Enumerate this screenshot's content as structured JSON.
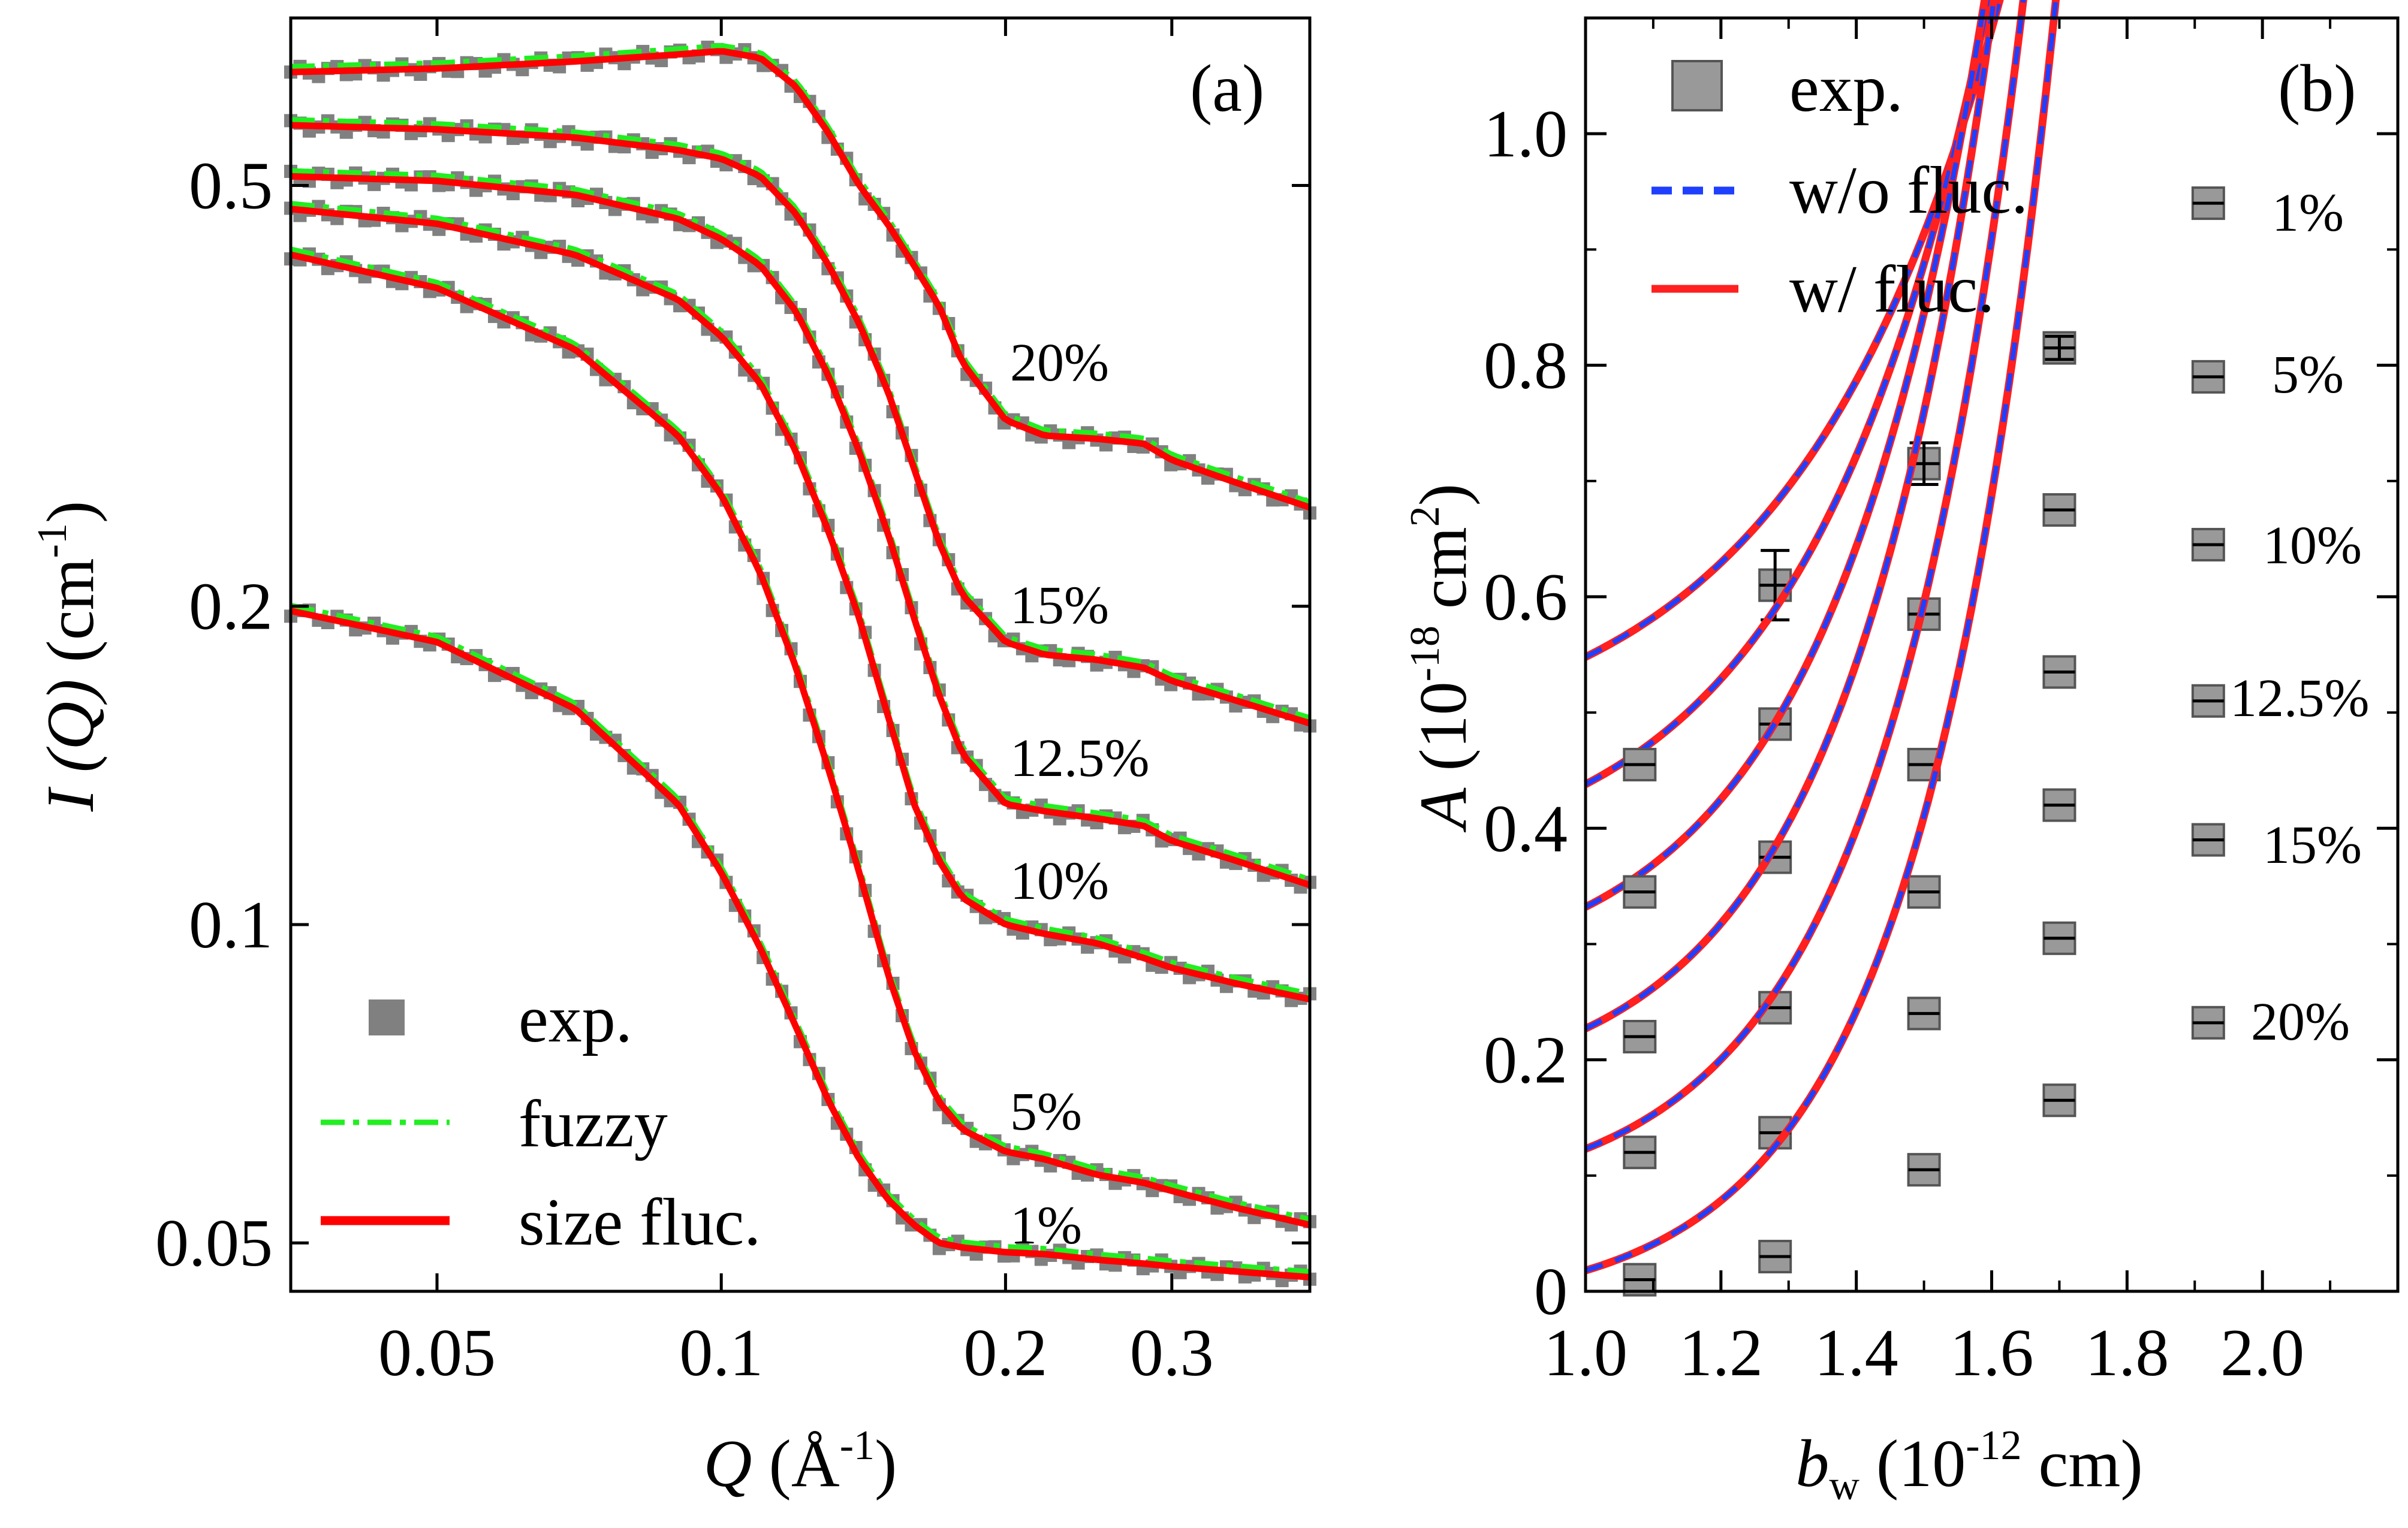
{
  "chart_data": [
    {
      "panel": "(a)",
      "type": "line",
      "scale": {
        "x": "log",
        "y": "log"
      },
      "xlim": [
        0.035,
        0.42
      ],
      "ylim": [
        0.045,
        0.72
      ],
      "xlabel": {
        "symbol": "Q",
        "unit": "(Å",
        "exp": "-1",
        "close": ")"
      },
      "ylabel": {
        "symbol": "I",
        "paren": "(Q)",
        "unit": "(cm",
        "exp": "-1",
        "close": ")"
      },
      "xticks": [
        0.05,
        0.1,
        0.2,
        0.3
      ],
      "xtick_labels": [
        "0.05",
        "0.1",
        "0.2",
        "0.3"
      ],
      "yticks": [
        0.05,
        0.1,
        0.2,
        0.5
      ],
      "ytick_labels": [
        "0.05",
        "0.1",
        "0.2",
        "0.5"
      ],
      "legend": {
        "position": "bottom-left",
        "entries": [
          {
            "label": "exp.",
            "style": "gray squares"
          },
          {
            "label": "fuzzy",
            "style": "green dash-dot"
          },
          {
            "label": "size fluc.",
            "style": "red solid"
          }
        ]
      },
      "series": [
        {
          "name": "20%",
          "x": [
            0.035,
            0.05,
            0.07,
            0.09,
            0.1,
            0.11,
            0.12,
            0.13,
            0.14,
            0.15,
            0.16,
            0.17,
            0.18,
            0.2,
            0.22,
            0.25,
            0.28,
            0.3,
            0.35,
            0.42
          ],
          "y": [
            0.64,
            0.645,
            0.655,
            0.665,
            0.67,
            0.66,
            0.62,
            0.56,
            0.5,
            0.46,
            0.42,
            0.385,
            0.34,
            0.3,
            0.29,
            0.288,
            0.285,
            0.275,
            0.262,
            0.248
          ]
        },
        {
          "name": "15%",
          "x": [
            0.035,
            0.05,
            0.07,
            0.09,
            0.1,
            0.11,
            0.12,
            0.13,
            0.14,
            0.15,
            0.16,
            0.17,
            0.18,
            0.2,
            0.22,
            0.25,
            0.28,
            0.3,
            0.35,
            0.42
          ],
          "y": [
            0.57,
            0.565,
            0.555,
            0.54,
            0.53,
            0.51,
            0.47,
            0.42,
            0.37,
            0.32,
            0.27,
            0.23,
            0.205,
            0.185,
            0.18,
            0.178,
            0.175,
            0.17,
            0.163,
            0.155
          ]
        },
        {
          "name": "12.5%",
          "x": [
            0.035,
            0.05,
            0.07,
            0.09,
            0.1,
            0.11,
            0.12,
            0.13,
            0.14,
            0.15,
            0.16,
            0.17,
            0.18,
            0.2,
            0.22,
            0.25,
            0.28,
            0.3,
            0.35,
            0.42
          ],
          "y": [
            0.51,
            0.505,
            0.49,
            0.465,
            0.445,
            0.42,
            0.38,
            0.33,
            0.28,
            0.235,
            0.195,
            0.165,
            0.145,
            0.13,
            0.128,
            0.126,
            0.124,
            0.12,
            0.115,
            0.109
          ]
        },
        {
          "name": "10%",
          "x": [
            0.035,
            0.05,
            0.07,
            0.09,
            0.1,
            0.11,
            0.12,
            0.13,
            0.14,
            0.15,
            0.16,
            0.17,
            0.18,
            0.2,
            0.22,
            0.25,
            0.28,
            0.3,
            0.35,
            0.42
          ],
          "y": [
            0.475,
            0.46,
            0.43,
            0.39,
            0.36,
            0.325,
            0.28,
            0.235,
            0.195,
            0.158,
            0.13,
            0.115,
            0.106,
            0.1,
            0.098,
            0.096,
            0.093,
            0.091,
            0.088,
            0.085
          ]
        },
        {
          "name": "5%",
          "x": [
            0.035,
            0.05,
            0.07,
            0.09,
            0.1,
            0.11,
            0.12,
            0.13,
            0.14,
            0.15,
            0.16,
            0.17,
            0.18,
            0.2,
            0.22,
            0.25,
            0.28,
            0.3,
            0.35,
            0.42
          ],
          "y": [
            0.43,
            0.4,
            0.35,
            0.29,
            0.255,
            0.215,
            0.175,
            0.14,
            0.112,
            0.09,
            0.076,
            0.068,
            0.064,
            0.061,
            0.06,
            0.058,
            0.057,
            0.056,
            0.054,
            0.052
          ]
        },
        {
          "name": "1%",
          "x": [
            0.035,
            0.05,
            0.07,
            0.09,
            0.1,
            0.11,
            0.12,
            0.13,
            0.14,
            0.15,
            0.16,
            0.17,
            0.18,
            0.2,
            0.22,
            0.25,
            0.28,
            0.3,
            0.35,
            0.42
          ],
          "y": [
            0.198,
            0.185,
            0.16,
            0.13,
            0.112,
            0.095,
            0.08,
            0.068,
            0.06,
            0.055,
            0.052,
            0.05,
            0.0495,
            0.049,
            0.0488,
            0.0482,
            0.0478,
            0.0475,
            0.047,
            0.0464
          ]
        }
      ],
      "curve_labels": [
        "20%",
        "15%",
        "12.5%",
        "10%",
        "5%",
        "1%"
      ]
    },
    {
      "panel": "(b)",
      "type": "line",
      "xlim": [
        1.0,
        2.2
      ],
      "ylim": [
        0,
        1.1
      ],
      "xlabel": {
        "symbol": "b",
        "sub": "w",
        "unit": "(10",
        "exp": "-12",
        "close": " cm)"
      },
      "ylabel": {
        "symbol": "A",
        "unit": "(10",
        "exp": "-18",
        "mid": " cm",
        "exp2": "2",
        "close": ")"
      },
      "xticks": [
        1.0,
        1.2,
        1.4,
        1.6,
        1.8,
        2.0
      ],
      "xtick_labels": [
        "1.0",
        "1.2",
        "1.4",
        "1.6",
        "1.8",
        "2.0"
      ],
      "yticks": [
        0,
        0.2,
        0.4,
        0.6,
        0.8,
        1.0
      ],
      "ytick_labels": [
        "0",
        "0.2",
        "0.4",
        "0.6",
        "0.8",
        "1.0"
      ],
      "legend": {
        "position": "top-left",
        "entries": [
          {
            "label": "exp.",
            "style": "gray squares"
          },
          {
            "label": "w/o fluc.",
            "style": "blue dashed"
          },
          {
            "label": "w/ fluc.",
            "style": "red solid"
          }
        ]
      },
      "exp_x": [
        1.08,
        1.28,
        1.5,
        1.7,
        1.92
      ],
      "series": [
        {
          "name": "1%",
          "fit": {
            "a": 0.548,
            "b": 0.0875,
            "c": 0.304
          },
          "exp_y": [
            null,
            0.61,
            0.715,
            0.815,
            0.94
          ],
          "err": [
            null,
            0.03,
            0.018,
            0.01,
            0.0
          ]
        },
        {
          "name": "5%",
          "fit": {
            "a": 0.438,
            "b": 0.0817,
            "c": 0.267
          },
          "exp_y": [
            0.455,
            0.49,
            0.585,
            0.675,
            0.79
          ],
          "err": [
            0,
            0,
            0,
            0,
            0
          ]
        },
        {
          "name": "10%",
          "fit": {
            "a": 0.332,
            "b": 0.0694,
            "c": 0.235
          },
          "exp_y": [
            0.345,
            0.375,
            0.455,
            0.535,
            0.645
          ],
          "err": [
            0,
            0,
            0,
            0,
            0
          ]
        },
        {
          "name": "12.5%",
          "fit": {
            "a": 0.227,
            "b": 0.0612,
            "c": 0.22
          },
          "exp_y": [
            0.22,
            0.245,
            0.345,
            0.42,
            0.51
          ],
          "err": [
            0,
            0,
            0,
            0,
            0
          ]
        },
        {
          "name": "15%",
          "fit": {
            "a": 0.123,
            "b": 0.0493,
            "c": 0.212
          },
          "exp_y": [
            0.12,
            0.137,
            0.24,
            0.305,
            0.39
          ],
          "err": [
            0,
            0,
            0,
            0,
            0
          ]
        },
        {
          "name": "20%",
          "fit": {
            "a": 0.018,
            "b": 0.0351,
            "c": 0.2
          },
          "exp_y": [
            0.01,
            0.03,
            0.105,
            0.165,
            0.232
          ],
          "err": [
            0,
            0,
            0,
            0,
            0
          ]
        }
      ],
      "curve_labels": [
        "1%",
        "5%",
        "10%",
        "12.5%",
        "15%",
        "20%"
      ]
    }
  ],
  "colors": {
    "exp": "#808080",
    "fuzzy": "#22ee22",
    "size_fluc": "#ff0000",
    "wo_fluc": "#1f3fff",
    "w_fluc": "#ff2020"
  }
}
